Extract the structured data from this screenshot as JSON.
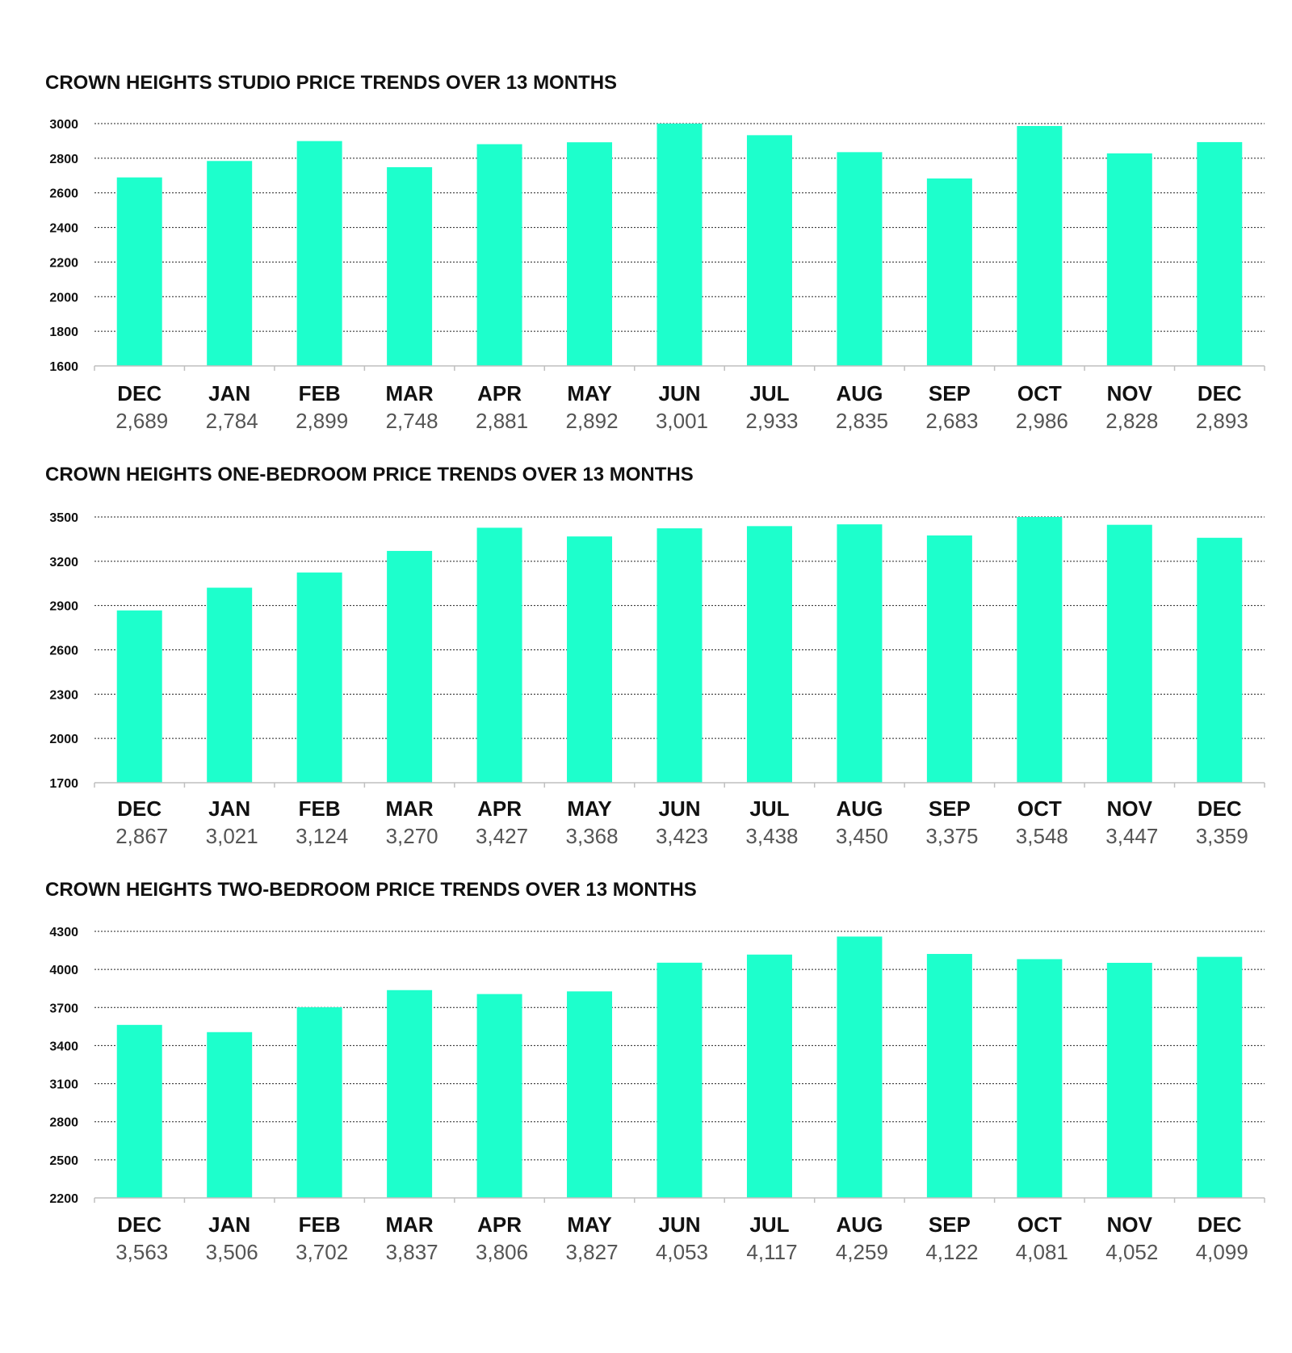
{
  "chart_data": [
    {
      "type": "bar",
      "title": "CROWN HEIGHTS STUDIO PRICE TRENDS OVER 13 MONTHS",
      "categories": [
        "DEC",
        "JAN",
        "FEB",
        "MAR",
        "APR",
        "MAY",
        "JUN",
        "JUL",
        "AUG",
        "SEP",
        "OCT",
        "NOV",
        "DEC"
      ],
      "values": [
        2689,
        2784,
        2899,
        2748,
        2881,
        2892,
        3001,
        2933,
        2835,
        2683,
        2986,
        2828,
        2893
      ],
      "value_labels": [
        "2,689",
        "2,784",
        "2,899",
        "2,748",
        "2,881",
        "2,892",
        "3,001",
        "2,933",
        "2,835",
        "2,683",
        "2,986",
        "2,828",
        "2,893"
      ],
      "yticks": [
        1600,
        1800,
        2000,
        2200,
        2400,
        2600,
        2800,
        3000
      ],
      "ytick_labels": [
        "1600",
        "1800",
        "2000",
        "2200",
        "2400",
        "2600",
        "2800",
        "3000"
      ],
      "ylim": [
        1600,
        3000
      ],
      "grid": true,
      "bar_color": "#1dffcc",
      "xlabel": "",
      "ylabel": ""
    },
    {
      "type": "bar",
      "title": "CROWN HEIGHTS ONE-BEDROOM PRICE TRENDS OVER 13 MONTHS",
      "categories": [
        "DEC",
        "JAN",
        "FEB",
        "MAR",
        "APR",
        "MAY",
        "JUN",
        "JUL",
        "AUG",
        "SEP",
        "OCT",
        "NOV",
        "DEC"
      ],
      "values": [
        2867,
        3021,
        3124,
        3270,
        3427,
        3368,
        3423,
        3438,
        3450,
        3375,
        3548,
        3447,
        3359
      ],
      "value_labels": [
        "2,867",
        "3,021",
        "3,124",
        "3,270",
        "3,427",
        "3,368",
        "3,423",
        "3,438",
        "3,450",
        "3,375",
        "3,548",
        "3,447",
        "3,359"
      ],
      "yticks": [
        1700,
        2000,
        2300,
        2600,
        2900,
        3200,
        3500
      ],
      "ytick_labels": [
        "1700",
        "2000",
        "2300",
        "2600",
        "2900",
        "3200",
        "3500"
      ],
      "ylim": [
        1700,
        3500
      ],
      "grid": true,
      "bar_color": "#1dffcc",
      "xlabel": "",
      "ylabel": ""
    },
    {
      "type": "bar",
      "title": "CROWN HEIGHTS TWO-BEDROOM PRICE TRENDS OVER 13 MONTHS",
      "categories": [
        "DEC",
        "JAN",
        "FEB",
        "MAR",
        "APR",
        "MAY",
        "JUN",
        "JUL",
        "AUG",
        "SEP",
        "OCT",
        "NOV",
        "DEC"
      ],
      "values": [
        3563,
        3506,
        3702,
        3837,
        3806,
        3827,
        4053,
        4117,
        4259,
        4122,
        4081,
        4052,
        4099
      ],
      "value_labels": [
        "3,563",
        "3,506",
        "3,702",
        "3,837",
        "3,806",
        "3,827",
        "4,053",
        "4,117",
        "4,259",
        "4,122",
        "4,081",
        "4,052",
        "4,099"
      ],
      "yticks": [
        2200,
        2500,
        2800,
        3100,
        3400,
        3700,
        4000,
        4300
      ],
      "ytick_labels": [
        "2200",
        "2500",
        "2800",
        "3100",
        "3400",
        "3700",
        "4000",
        "4300"
      ],
      "ylim": [
        2200,
        4300
      ],
      "grid": true,
      "bar_color": "#1dffcc",
      "xlabel": "",
      "ylabel": ""
    }
  ]
}
